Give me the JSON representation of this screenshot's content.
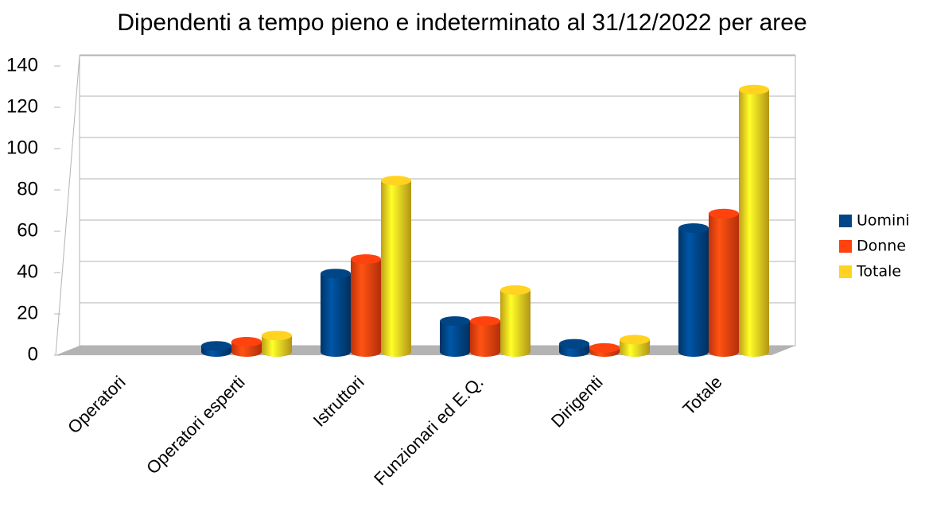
{
  "chart_data": {
    "type": "bar",
    "title": "Dipendenti a tempo pieno e indeterminato al 31/12/2022 per aree",
    "categories": [
      "Operatori",
      "Operatori esperti",
      "Istruttori",
      "Funzionari ed E.Q.",
      "Dirigenti",
      "Totale"
    ],
    "series": [
      {
        "name": "Uomini",
        "color": "#004586",
        "values": [
          0,
          3,
          38,
          15,
          4,
          60
        ]
      },
      {
        "name": "Donne",
        "color": "#ff420e",
        "values": [
          0,
          5,
          45,
          15,
          2,
          67
        ]
      },
      {
        "name": "Totale",
        "color": "#ffd320",
        "values": [
          0,
          8,
          83,
          30,
          6,
          127
        ]
      }
    ],
    "ylim": [
      0,
      140
    ],
    "yticks": [
      0,
      20,
      40,
      60,
      80,
      100,
      120,
      140
    ],
    "grid": true,
    "legend": "right"
  }
}
